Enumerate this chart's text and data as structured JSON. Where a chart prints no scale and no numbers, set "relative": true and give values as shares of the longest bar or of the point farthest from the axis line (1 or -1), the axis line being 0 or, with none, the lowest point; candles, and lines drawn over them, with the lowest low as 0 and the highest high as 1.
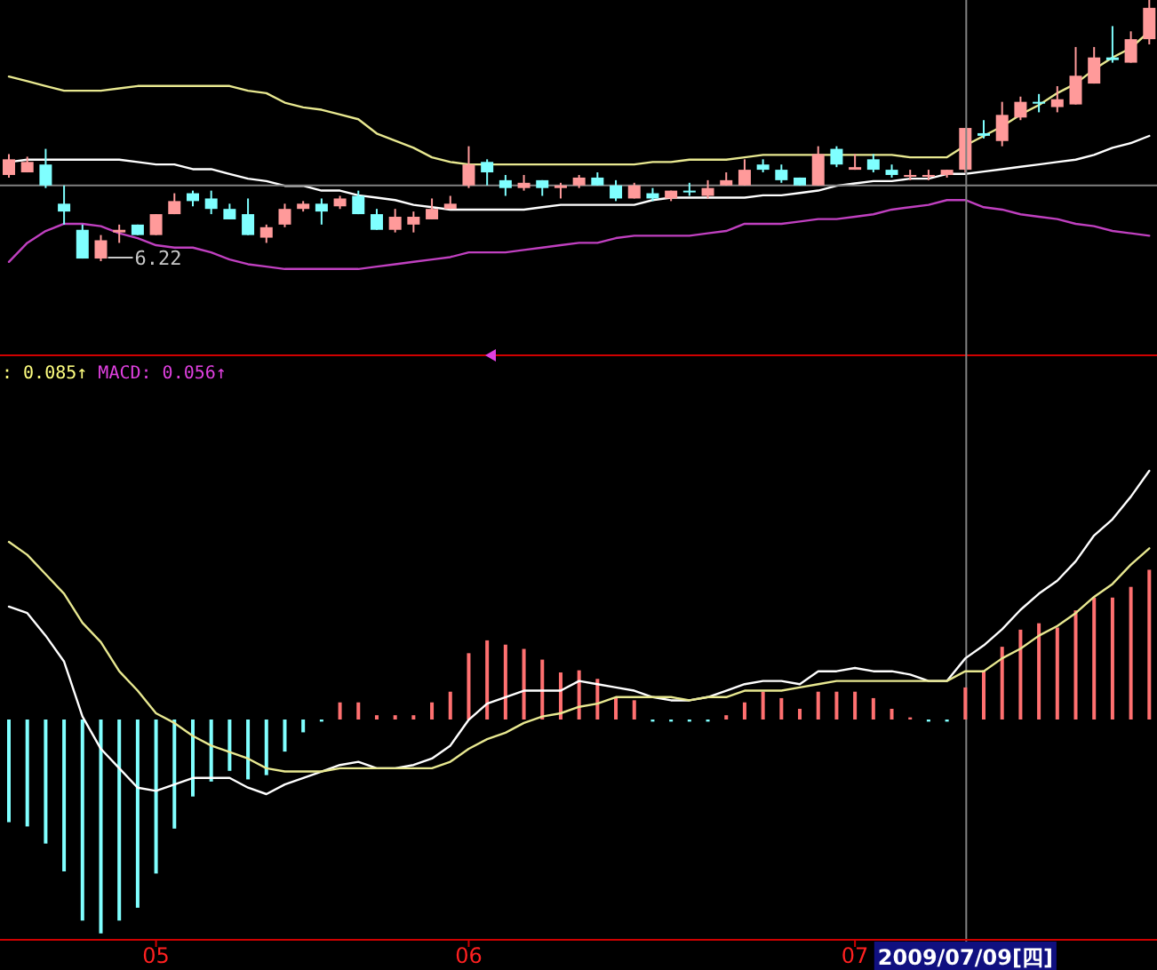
{
  "chart_data": [
    {
      "type": "line",
      "relative": true,
      "tick_labels": false,
      "categories": [
        null,
        null,
        null,
        null,
        null,
        null,
        null,
        null,
        null,
        null,
        null,
        null,
        null,
        null,
        null,
        null,
        null,
        null,
        null,
        null,
        null,
        null,
        null,
        null,
        null,
        null,
        null,
        null,
        null,
        null,
        null,
        null,
        null,
        null,
        null,
        null,
        null,
        null,
        null,
        null,
        null,
        null,
        null,
        null,
        null,
        null,
        null,
        null,
        null,
        null,
        null,
        null,
        null,
        null,
        null,
        null,
        null,
        null,
        null,
        null,
        null,
        null,
        null
      ],
      "series": [
        {
          "type": "line",
          "color": "#e8e890",
          "values": [
            0.81,
            0.79,
            0.77,
            0.75,
            0.75,
            0.75,
            0.76,
            0.77,
            0.77,
            0.77,
            0.77,
            0.77,
            0.77,
            0.75,
            0.74,
            0.7,
            0.68,
            0.67,
            0.65,
            0.63,
            0.57,
            0.54,
            0.51,
            0.47,
            0.45,
            0.44,
            0.44,
            0.44,
            0.44,
            0.44,
            0.44,
            0.44,
            0.44,
            0.44,
            0.44,
            0.45,
            0.45,
            0.46,
            0.46,
            0.46,
            0.47,
            0.48,
            0.48,
            0.48,
            0.48,
            0.48,
            0.48,
            0.48,
            0.48,
            0.47,
            0.47,
            0.47,
            0.52,
            0.56,
            0.6,
            0.65,
            0.69,
            0.74,
            0.78,
            0.84,
            0.89,
            0.93,
            1
          ]
        },
        {
          "type": "line",
          "color": "#ffffff",
          "values": [
            0.45,
            0.46,
            0.46,
            0.46,
            0.46,
            0.46,
            0.46,
            0.45,
            0.44,
            0.44,
            0.42,
            0.42,
            0.4,
            0.38,
            0.37,
            0.35,
            0.35,
            0.33,
            0.33,
            0.31,
            0.3,
            0.29,
            0.27,
            0.26,
            0.25,
            0.25,
            0.25,
            0.25,
            0.25,
            0.26,
            0.27,
            0.27,
            0.27,
            0.27,
            0.27,
            0.29,
            0.3,
            0.3,
            0.3,
            0.3,
            0.3,
            0.31,
            0.31,
            0.32,
            0.33,
            0.35,
            0.36,
            0.37,
            0.37,
            0.38,
            0.38,
            0.4,
            0.4,
            0.41,
            0.42,
            0.43,
            0.44,
            0.45,
            0.46,
            0.48,
            0.51,
            0.53,
            0.56
          ]
        },
        {
          "type": "line",
          "color": "#c040c0",
          "values": [
            0.03,
            0.11,
            0.16,
            0.19,
            0.19,
            0.18,
            0.15,
            0.13,
            0.1,
            0.09,
            0.09,
            0.07,
            0.04,
            0.02,
            0.01,
            0,
            0,
            0,
            0,
            0,
            0.01,
            0.02,
            0.03,
            0.04,
            0.05,
            0.07,
            0.07,
            0.07,
            0.08,
            0.09,
            0.1,
            0.11,
            0.11,
            0.13,
            0.14,
            0.14,
            0.14,
            0.14,
            0.15,
            0.16,
            0.19,
            0.19,
            0.19,
            0.2,
            0.21,
            0.21,
            0.22,
            0.23,
            0.25,
            0.26,
            0.27,
            0.29,
            0.29,
            0.26,
            0.25,
            0.23,
            0.22,
            0.21,
            0.19,
            0.18,
            0.16,
            0.15,
            0.14
          ]
        }
      ]
    },
    {
      "type": "candlestick",
      "relative": true,
      "tick_labels": false,
      "categories": [
        null,
        null,
        null,
        null,
        null,
        null,
        null,
        null,
        null,
        null,
        null,
        null,
        null,
        null,
        null,
        null,
        null,
        null,
        null,
        null,
        null,
        null,
        null,
        null,
        null,
        null,
        null,
        null,
        null,
        null,
        null,
        null,
        null,
        null,
        null,
        null,
        null,
        null,
        null,
        null,
        null,
        null,
        null,
        null,
        null,
        null,
        null,
        null,
        null,
        null,
        null,
        null,
        null,
        null,
        null,
        null,
        null,
        null,
        null,
        null,
        null,
        null,
        null
      ],
      "ohlc": [
        [
          0.33,
          0.41,
          0.32,
          0.39
        ],
        [
          0.34,
          0.4,
          0.34,
          0.38
        ],
        [
          0.37,
          0.43,
          0.28,
          0.29
        ],
        [
          0.22,
          0.29,
          0.14,
          0.19
        ],
        [
          0.12,
          0.14,
          0.01,
          0.01
        ],
        [
          0.01,
          0.1,
          0,
          0.08
        ],
        [
          0.11,
          0.14,
          0.07,
          0.12
        ],
        [
          0.14,
          0.14,
          0.1,
          0.1
        ],
        [
          0.1,
          0.18,
          0.1,
          0.18
        ],
        [
          0.18,
          0.26,
          0.18,
          0.23
        ],
        [
          0.26,
          0.27,
          0.21,
          0.23
        ],
        [
          0.24,
          0.27,
          0.18,
          0.2
        ],
        [
          0.2,
          0.22,
          0.16,
          0.16
        ],
        [
          0.18,
          0.24,
          0.1,
          0.1
        ],
        [
          0.09,
          0.14,
          0.07,
          0.13
        ],
        [
          0.14,
          0.22,
          0.13,
          0.2
        ],
        [
          0.2,
          0.23,
          0.19,
          0.22
        ],
        [
          0.22,
          0.24,
          0.14,
          0.19
        ],
        [
          0.21,
          0.25,
          0.2,
          0.24
        ],
        [
          0.25,
          0.27,
          0.18,
          0.18
        ],
        [
          0.18,
          0.2,
          0.12,
          0.12
        ],
        [
          0.12,
          0.2,
          0.11,
          0.17
        ],
        [
          0.14,
          0.19,
          0.11,
          0.17
        ],
        [
          0.16,
          0.24,
          0.16,
          0.2
        ],
        [
          0.2,
          0.25,
          0.2,
          0.22
        ],
        [
          0.29,
          0.44,
          0.28,
          0.37
        ],
        [
          0.38,
          0.39,
          0.29,
          0.34
        ],
        [
          0.31,
          0.33,
          0.25,
          0.28
        ],
        [
          0.28,
          0.33,
          0.27,
          0.3
        ],
        [
          0.31,
          0.31,
          0.25,
          0.28
        ],
        [
          0.28,
          0.3,
          0.24,
          0.29
        ],
        [
          0.29,
          0.33,
          0.28,
          0.32
        ],
        [
          0.32,
          0.34,
          0.29,
          0.29
        ],
        [
          0.29,
          0.31,
          0.23,
          0.24
        ],
        [
          0.24,
          0.3,
          0.24,
          0.29
        ],
        [
          0.26,
          0.28,
          0.23,
          0.24
        ],
        [
          0.24,
          0.27,
          0.23,
          0.27
        ],
        [
          0.27,
          0.3,
          0.25,
          0.27
        ],
        [
          0.25,
          0.31,
          0.24,
          0.28
        ],
        [
          0.29,
          0.34,
          0.29,
          0.31
        ],
        [
          0.29,
          0.39,
          0.29,
          0.35
        ],
        [
          0.37,
          0.39,
          0.34,
          0.35
        ],
        [
          0.35,
          0.37,
          0.3,
          0.31
        ],
        [
          0.32,
          0.32,
          0.29,
          0.29
        ],
        [
          0.29,
          0.44,
          0.29,
          0.41
        ],
        [
          0.43,
          0.44,
          0.36,
          0.37
        ],
        [
          0.35,
          0.41,
          0.35,
          0.36
        ],
        [
          0.39,
          0.41,
          0.34,
          0.35
        ],
        [
          0.35,
          0.37,
          0.32,
          0.33
        ],
        [
          0.33,
          0.35,
          0.31,
          0.33
        ],
        [
          0.33,
          0.35,
          0.31,
          0.33
        ],
        [
          0.33,
          0.35,
          0.32,
          0.35
        ],
        [
          0.35,
          0.51,
          0.34,
          0.51
        ],
        [
          0.49,
          0.54,
          0.47,
          0.48
        ],
        [
          0.46,
          0.61,
          0.44,
          0.56
        ],
        [
          0.55,
          0.63,
          0.54,
          0.61
        ],
        [
          0.61,
          0.64,
          0.57,
          0.61
        ],
        [
          0.59,
          0.67,
          0.57,
          0.62
        ],
        [
          0.6,
          0.82,
          0.6,
          0.71
        ],
        [
          0.68,
          0.82,
          0.68,
          0.78
        ],
        [
          0.78,
          0.9,
          0.76,
          0.77
        ],
        [
          0.76,
          0.88,
          0.76,
          0.85
        ],
        [
          0.85,
          1,
          0.83,
          0.97
        ]
      ],
      "colors": [
        "#ff9a9a",
        "#ff9a9a",
        "#7fffff",
        "#7fffff",
        "#7fffff",
        "#ff9a9a",
        "#ff9a9a",
        "#7fffff",
        "#ff9a9a",
        "#ff9a9a",
        "#7fffff",
        "#7fffff",
        "#7fffff",
        "#7fffff",
        "#ff9a9a",
        "#ff9a9a",
        "#ff9a9a",
        "#7fffff",
        "#ff9a9a",
        "#7fffff",
        "#7fffff",
        "#ff9a9a",
        "#ff9a9a",
        "#ff9a9a",
        "#ff9a9a",
        "#ff9a9a",
        "#7fffff",
        "#7fffff",
        "#ff9a9a",
        "#7fffff",
        "#ff9a9a",
        "#ff9a9a",
        "#7fffff",
        "#7fffff",
        "#ff9a9a",
        "#7fffff",
        "#ff9a9a",
        "#7fffff",
        "#ff9a9a",
        "#ff9a9a",
        "#ff9a9a",
        "#7fffff",
        "#7fffff",
        "#7fffff",
        "#ff9a9a",
        "#7fffff",
        "#ff9a9a",
        "#7fffff",
        "#7fffff",
        "#ff9a9a",
        "#ff9a9a",
        "#ff9a9a",
        "#ff9a9a",
        "#7fffff",
        "#ff9a9a",
        "#ff9a9a",
        "#7fffff",
        "#ff9a9a",
        "#ff9a9a",
        "#ff9a9a",
        "#7fffff",
        "#ff9a9a",
        "#ff9a9a"
      ],
      "annotations": [
        "6.22"
      ],
      "ref_lines": [
        {
          "axis": "y",
          "value": 0.29,
          "color": "#808080"
        }
      ]
    },
    {
      "type": "bar",
      "relative": true,
      "tick_labels": "x",
      "categories": [
        null,
        null,
        null,
        null,
        null,
        null,
        null,
        null,
        "05",
        null,
        null,
        null,
        null,
        null,
        null,
        null,
        null,
        null,
        null,
        null,
        null,
        null,
        null,
        null,
        null,
        "06",
        null,
        null,
        null,
        null,
        null,
        null,
        null,
        null,
        null,
        null,
        null,
        null,
        null,
        null,
        null,
        null,
        null,
        null,
        null,
        null,
        "07",
        null,
        null,
        null,
        null,
        null,
        "2009/07/09[四]",
        null,
        null,
        null,
        null,
        null,
        null,
        null,
        null,
        null,
        null
      ],
      "values": [
        -0.48,
        -0.5,
        -0.58,
        -0.71,
        -0.94,
        -1,
        -0.94,
        -0.88,
        -0.72,
        -0.51,
        -0.36,
        -0.29,
        -0.24,
        -0.28,
        -0.26,
        -0.15,
        -0.06,
        -0.01,
        0.08,
        0.08,
        0.02,
        0.02,
        0.02,
        0.08,
        0.13,
        0.31,
        0.37,
        0.35,
        0.33,
        0.28,
        0.22,
        0.23,
        0.19,
        0.1,
        0.09,
        -0.01,
        -0.01,
        -0.01,
        -0.01,
        0.02,
        0.08,
        0.13,
        0.1,
        0.05,
        0.13,
        0.13,
        0.13,
        0.1,
        0.05,
        0.01,
        -0.01,
        -0.01,
        0.15,
        0.23,
        0.34,
        0.42,
        0.45,
        0.43,
        0.51,
        0.57,
        0.57,
        0.62,
        0.7
      ],
      "colors": [
        "#80ffff",
        "#80ffff",
        "#80ffff",
        "#80ffff",
        "#80ffff",
        "#80ffff",
        "#80ffff",
        "#80ffff",
        "#80ffff",
        "#80ffff",
        "#80ffff",
        "#80ffff",
        "#80ffff",
        "#80ffff",
        "#80ffff",
        "#80ffff",
        "#80ffff",
        "#80ffff",
        "#ff7070",
        "#ff7070",
        "#ff7070",
        "#ff7070",
        "#ff7070",
        "#ff7070",
        "#ff7070",
        "#ff7070",
        "#ff7070",
        "#ff7070",
        "#ff7070",
        "#ff7070",
        "#ff7070",
        "#ff7070",
        "#ff7070",
        "#ff7070",
        "#ff7070",
        "#80ffff",
        "#80ffff",
        "#80ffff",
        "#80ffff",
        "#ff7070",
        "#ff7070",
        "#ff7070",
        "#ff7070",
        "#ff7070",
        "#ff7070",
        "#ff7070",
        "#ff7070",
        "#ff7070",
        "#ff7070",
        "#ff7070",
        "#80ffff",
        "#80ffff",
        "#ff7070",
        "#ff7070",
        "#ff7070",
        "#ff7070",
        "#ff7070",
        "#ff7070",
        "#ff7070",
        "#ff7070",
        "#ff7070",
        "#ff7070",
        "#ff7070"
      ],
      "annotations": [
        ": 0.085↑",
        "MACD: 0.056↑"
      ],
      "ref_lines": [
        {
          "axis": "x",
          "value": "2009/07/09[四]",
          "color": "#808080"
        }
      ]
    },
    {
      "type": "line",
      "relative": true,
      "tick_labels": false,
      "categories": [
        null,
        null,
        null,
        null,
        null,
        null,
        null,
        null,
        null,
        null,
        null,
        null,
        null,
        null,
        null,
        null,
        null,
        null,
        null,
        null,
        null,
        null,
        null,
        null,
        null,
        null,
        null,
        null,
        null,
        null,
        null,
        null,
        null,
        null,
        null,
        null,
        null,
        null,
        null,
        null,
        null,
        null,
        null,
        null,
        null,
        null,
        null,
        null,
        null,
        null,
        null,
        null,
        null,
        null,
        null,
        null,
        null,
        null,
        null,
        null,
        null,
        null,
        null
      ],
      "series": [
        {
          "type": "line",
          "color": "#ffffff",
          "values": [
            0.58,
            0.56,
            0.49,
            0.41,
            0.24,
            0.14,
            0.08,
            0.02,
            0.01,
            0.03,
            0.05,
            0.05,
            0.05,
            0.02,
            0,
            0.03,
            0.05,
            0.07,
            0.09,
            0.1,
            0.08,
            0.08,
            0.09,
            0.11,
            0.15,
            0.23,
            0.28,
            0.3,
            0.32,
            0.32,
            0.32,
            0.35,
            0.34,
            0.33,
            0.32,
            0.3,
            0.29,
            0.29,
            0.3,
            0.32,
            0.34,
            0.35,
            0.35,
            0.34,
            0.38,
            0.38,
            0.39,
            0.38,
            0.38,
            0.37,
            0.35,
            0.35,
            0.42,
            0.46,
            0.51,
            0.57,
            0.62,
            0.66,
            0.72,
            0.8,
            0.85,
            0.92,
            1
          ]
        },
        {
          "type": "line",
          "color": "#e8e890",
          "values": [
            0.78,
            0.74,
            0.68,
            0.62,
            0.53,
            0.47,
            0.38,
            0.32,
            0.25,
            0.22,
            0.18,
            0.15,
            0.13,
            0.11,
            0.08,
            0.07,
            0.07,
            0.07,
            0.08,
            0.08,
            0.08,
            0.08,
            0.08,
            0.08,
            0.1,
            0.14,
            0.17,
            0.19,
            0.22,
            0.24,
            0.25,
            0.27,
            0.28,
            0.3,
            0.3,
            0.3,
            0.3,
            0.29,
            0.3,
            0.3,
            0.32,
            0.32,
            0.32,
            0.33,
            0.34,
            0.35,
            0.35,
            0.35,
            0.35,
            0.35,
            0.35,
            0.35,
            0.38,
            0.38,
            0.42,
            0.45,
            0.49,
            0.52,
            0.56,
            0.61,
            0.65,
            0.71,
            0.76
          ]
        }
      ]
    }
  ]
}
